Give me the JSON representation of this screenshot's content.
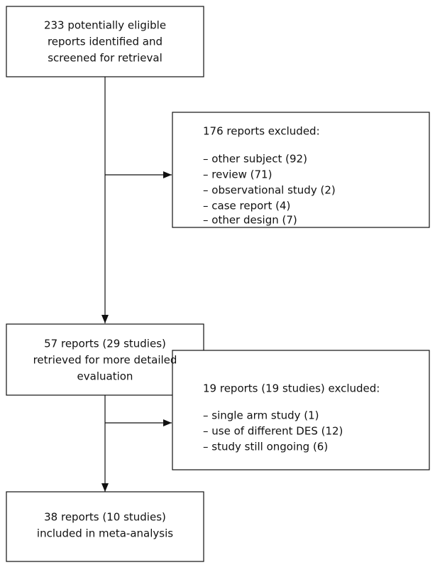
{
  "nodes": [
    {
      "lines": [
        "233 potentially eligible",
        "reports identified and",
        "screened for retrieval"
      ]
    },
    {
      "lines": [
        "176 reports excluded:",
        "– other subject (92)",
        "– review (71)",
        "– observational study (2)",
        "– case report (4)",
        "– other design (7)"
      ]
    },
    {
      "lines": [
        "57 reports (29 studies)",
        "retrieved for more detailed",
        "evaluation"
      ]
    },
    {
      "lines": [
        "19 reports (19 studies) excluded:",
        "– single arm study (1)",
        "– use of different DES (12)",
        "– study still ongoing (6)"
      ]
    },
    {
      "lines": [
        "38 reports (10 studies)",
        "included in meta-analysis"
      ]
    }
  ]
}
